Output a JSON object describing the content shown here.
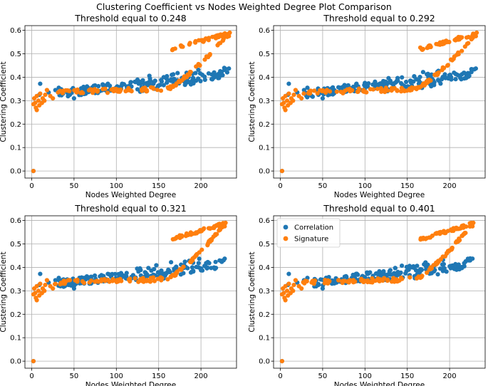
{
  "figure": {
    "title": "Clustering Coefficient vs Nodes Weighted Degree Plot Comparison"
  },
  "colors": {
    "correlation": "#1f77b4",
    "signature": "#ff7f0e",
    "grid": "#b0b0b0",
    "axes": "#000000"
  },
  "chart_data": [
    {
      "type": "scatter",
      "title": "Threshold equal to 0.248",
      "xlabel": "Nodes Weighted Degree",
      "ylabel": "Clustering Coefficient",
      "xlim": [
        -8,
        242
      ],
      "ylim": [
        -0.03,
        0.62
      ],
      "xticks": [
        0,
        50,
        100,
        150,
        200
      ],
      "yticks": [
        0.0,
        0.1,
        0.2,
        0.3,
        0.4,
        0.5,
        0.6
      ],
      "xmax_data": 235,
      "legend": null,
      "series": [
        {
          "name": "Correlation",
          "description": "tight band rising from ~0.32 at x~30 to ~0.44 at x~230; isolated point at (2, 0.0)"
        },
        {
          "name": "Signature",
          "description": "flat ~0.34 band to x~160, then rising branch to ~0.58 at x~235 and a high branch from x~165 at ~0.52 up to ~0.59; point at (2, 0.0)"
        }
      ]
    },
    {
      "type": "scatter",
      "title": "Threshold equal to 0.292",
      "xlabel": "Nodes Weighted Degree",
      "ylabel": "Clustering Coefficient",
      "xlim": [
        -8,
        242
      ],
      "ylim": [
        -0.03,
        0.62
      ],
      "xticks": [
        0,
        50,
        100,
        150,
        200
      ],
      "yticks": [
        0.0,
        0.1,
        0.2,
        0.3,
        0.4,
        0.5,
        0.6
      ],
      "xmax_data": 233,
      "legend": null,
      "series": [
        {
          "name": "Correlation",
          "description": "tight band rising from ~0.32 at x~30 to ~0.44 at x~230; isolated point at (2, 0.0)"
        },
        {
          "name": "Signature",
          "description": "flat ~0.34 band to x~160, then rising branch to ~0.58 at x~233 and a high branch from x~165 at ~0.52 up to ~0.59; point at (2, 0.0)"
        }
      ]
    },
    {
      "type": "scatter",
      "title": "Threshold equal to 0.321",
      "xlabel": "Nodes Weighted Degree",
      "ylabel": "Clustering Coefficient",
      "xlim": [
        -8,
        242
      ],
      "ylim": [
        -0.03,
        0.62
      ],
      "xticks": [
        0,
        50,
        100,
        150,
        200
      ],
      "yticks": [
        0.0,
        0.1,
        0.2,
        0.3,
        0.4,
        0.5,
        0.6
      ],
      "xmax_data": 230,
      "legend": null,
      "series": [
        {
          "name": "Correlation",
          "description": "tight band rising from ~0.32 at x~30 to ~0.44 at x~228; isolated point at (2, 0.0)"
        },
        {
          "name": "Signature",
          "description": "flat ~0.34 band to x~160, then rising branch to ~0.58 at x~230 and a high branch from x~165 at ~0.52 up to ~0.59; point at (2, 0.0)"
        }
      ]
    },
    {
      "type": "scatter",
      "title": "Threshold equal to 0.401",
      "xlabel": "Nodes Weighted Degree",
      "ylabel": "Clustering Coefficient",
      "xlim": [
        -8,
        242
      ],
      "ylim": [
        -0.03,
        0.62
      ],
      "xticks": [
        0,
        50,
        100,
        150,
        200
      ],
      "yticks": [
        0.0,
        0.1,
        0.2,
        0.3,
        0.4,
        0.5,
        0.6
      ],
      "xmax_data": 229,
      "legend": "upper-left",
      "series": [
        {
          "name": "Correlation",
          "description": "tight band rising from ~0.32 at x~30 to ~0.44 at x~227; isolated point at (2, 0.0)"
        },
        {
          "name": "Signature",
          "description": "flat ~0.34 band to x~160, then rising branch to ~0.58 at x~229 and a high branch from x~165 at ~0.52 up to ~0.59; point at (2, 0.0)"
        }
      ]
    }
  ]
}
